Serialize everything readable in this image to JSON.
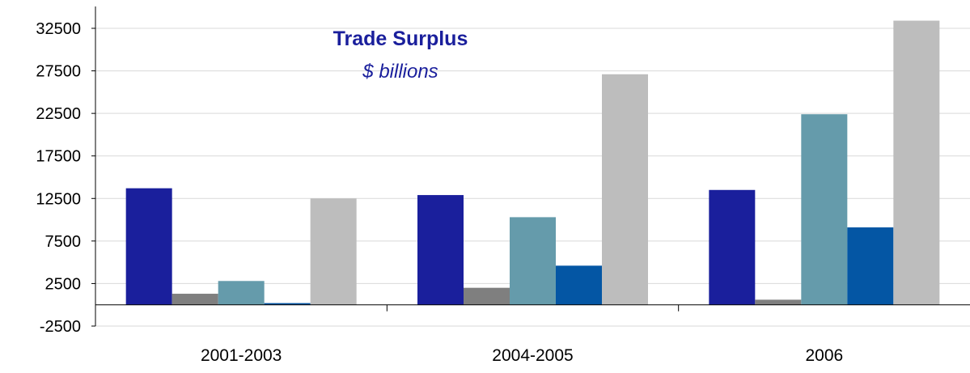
{
  "chart_data": {
    "type": "bar",
    "title": "Trade Surplus",
    "subtitle": "$ billions",
    "title_color": "#1a1f9c",
    "categories": [
      "2001-2003",
      "2004-2005",
      "2006"
    ],
    "yticks": [
      -2500,
      2500,
      7500,
      12500,
      17500,
      22500,
      27500,
      32500
    ],
    "ylim": [
      -3000,
      35000
    ],
    "grid": true,
    "series": [
      {
        "color": "#1a1f9c",
        "values": [
          13700,
          12900,
          13500
        ]
      },
      {
        "color": "#7f7f7f",
        "values": [
          1300,
          2000,
          600
        ]
      },
      {
        "color": "#659bab",
        "values": [
          2800,
          10300,
          22400
        ]
      },
      {
        "color": "#0456a4",
        "values": [
          200,
          4600,
          9100
        ]
      },
      {
        "color": "#bdbdbd",
        "values": [
          12500,
          27100,
          33400
        ]
      }
    ]
  }
}
